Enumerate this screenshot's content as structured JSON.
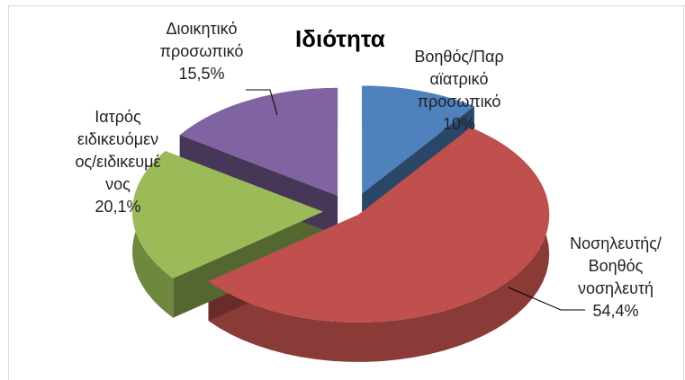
{
  "chart_data": {
    "type": "pie",
    "variant": "3d-exploded",
    "title": "Ιδιότητα",
    "slices": [
      {
        "label_lines": [
          "Βοηθός/Παρ",
          "αϊατρικό",
          "προσωπικό"
        ],
        "value": 10.0,
        "value_label": "10%",
        "color": "#4F81BD"
      },
      {
        "label_lines": [
          "Νοσηλευτής/",
          "Βοηθός",
          "νοσηλευτή"
        ],
        "value": 54.4,
        "value_label": "54,4%",
        "color": "#C0504D"
      },
      {
        "label_lines": [
          "Ιατρός",
          "ειδικευόμεν",
          "ος/ειδικευμέ",
          "νος"
        ],
        "value": 20.1,
        "value_label": "20,1%",
        "color": "#9BBB59"
      },
      {
        "label_lines": [
          "Διοικητικό",
          "προσωπικό"
        ],
        "value": 15.5,
        "value_label": "15,5%",
        "color": "#8064A2"
      }
    ]
  }
}
